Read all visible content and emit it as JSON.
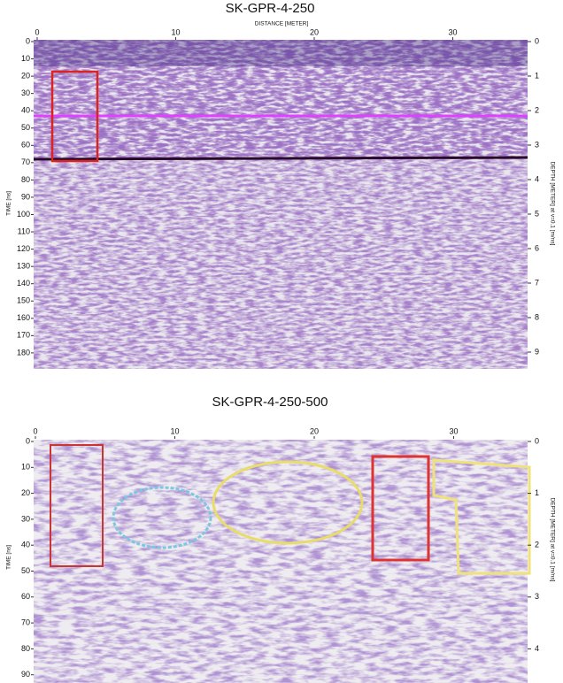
{
  "panels": [
    {
      "title": "SK-GPR-4-250",
      "x_label": "DISTANCE [METER]",
      "y_label": "TIME [ns]",
      "y2_label": "DEPTH [METER] at v=0.1 [m/ns]",
      "xticks": [
        0,
        10,
        20,
        30
      ],
      "yticks": [
        0,
        10,
        20,
        30,
        40,
        50,
        60,
        70,
        80,
        90,
        100,
        110,
        120,
        130,
        140,
        150,
        160,
        170,
        180
      ],
      "y2ticks": [
        0,
        1,
        2,
        3,
        4,
        5,
        6,
        7,
        8,
        9
      ]
    },
    {
      "title": "SK-GPR-4-250-500",
      "y_label": "TIME [ns]",
      "y2_label": "DEPTH [METER] at v=0.1 [m/ns]",
      "xticks": [
        0,
        10,
        20,
        30
      ],
      "yticks": [
        0,
        10,
        20,
        30,
        40,
        50,
        60,
        70,
        80,
        90
      ],
      "y2ticks": [
        0,
        1,
        2,
        3,
        4
      ]
    }
  ]
}
